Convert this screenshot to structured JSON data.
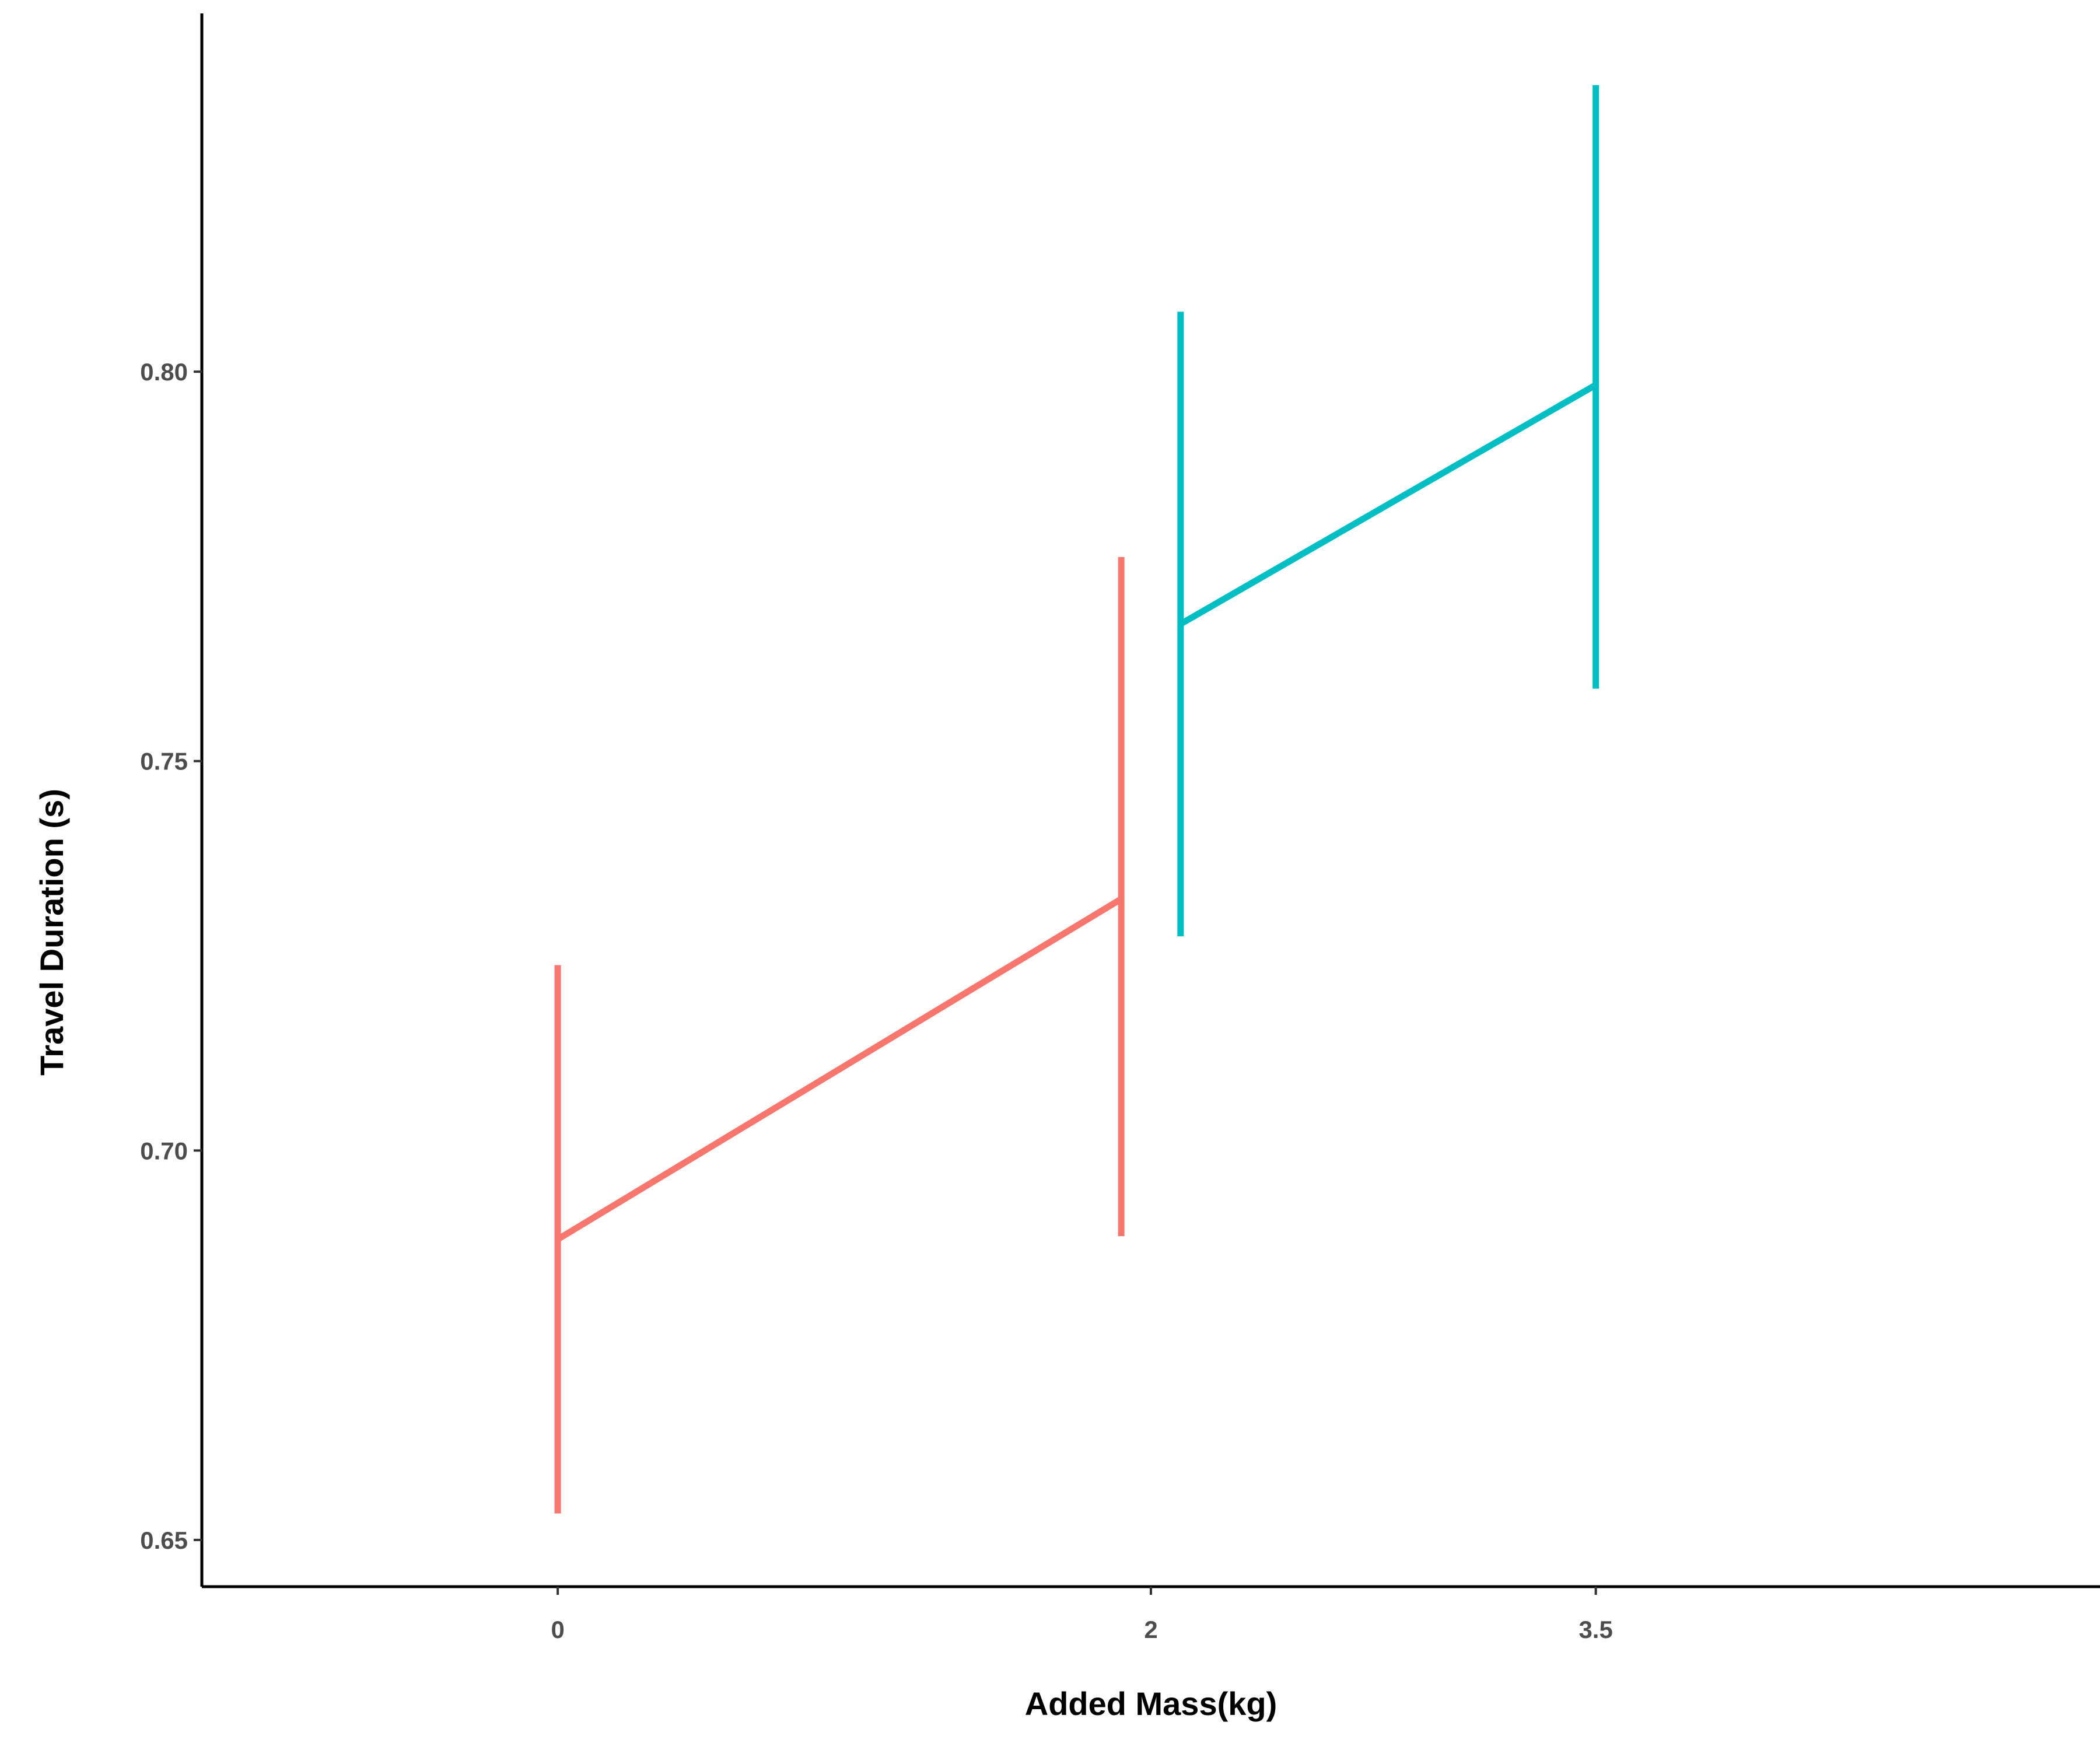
{
  "chart_data": {
    "type": "line",
    "title": "",
    "xlabel": "Added Mass(kg)",
    "ylabel": "Travel Duration (s)",
    "x_ticks": [
      "0",
      "2",
      "3.5"
    ],
    "y_ticks": [
      "0.65",
      "0.70",
      "0.75",
      "0.80"
    ],
    "xlim": [
      -1.2,
      5.2
    ],
    "ylim": [
      0.644,
      0.846
    ],
    "grid": false,
    "legend": "none",
    "series": [
      {
        "color": "#F8766D",
        "points": [
          {
            "x": 0,
            "y": 0.6886,
            "ymin": 0.6534,
            "ymax": 0.7238
          },
          {
            "x": 1.9,
            "y": 0.7323,
            "ymin": 0.689,
            "ymax": 0.7762
          }
        ]
      },
      {
        "color": "#00BFC4",
        "points": [
          {
            "x": 2.1,
            "y": 0.7676,
            "ymin": 0.7275,
            "ymax": 0.8077
          },
          {
            "x": 3.5,
            "y": 0.7983,
            "ymin": 0.7593,
            "ymax": 0.8368
          }
        ]
      }
    ]
  }
}
